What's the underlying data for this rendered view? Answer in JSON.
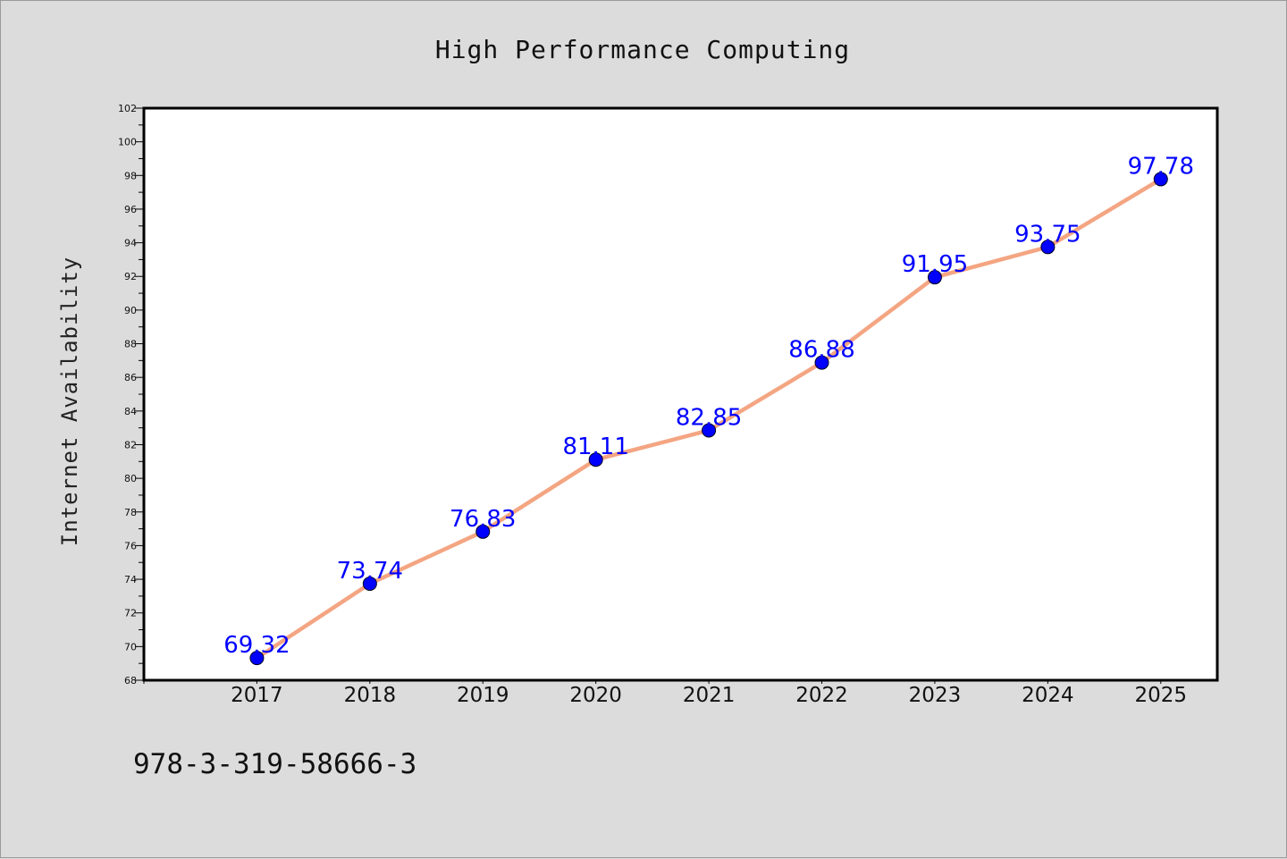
{
  "footer_text": "978-3-319-58666-3",
  "colors": {
    "background": "#dcdcdc",
    "plot_background": "#ffffff",
    "line": "#f4a582",
    "marker": "#0000ff",
    "data_label": "#0000ff"
  },
  "chart_data": {
    "type": "line",
    "title": "High Performance Computing",
    "xlabel": "",
    "ylabel": "Internet Availability",
    "x": [
      "2017",
      "2018",
      "2019",
      "2020",
      "2021",
      "2022",
      "2023",
      "2024",
      "2025"
    ],
    "values": [
      69.32,
      73.74,
      76.83,
      81.11,
      82.85,
      86.88,
      91.95,
      93.75,
      97.78
    ],
    "data_labels": [
      "69.32",
      "73.74",
      "76.83",
      "81.11",
      "82.85",
      "86.88",
      "91.95",
      "93.75",
      "97.78"
    ],
    "ylim": [
      68,
      102
    ],
    "yticks": [
      68,
      70,
      72,
      74,
      76,
      78,
      80,
      82,
      84,
      86,
      88,
      90,
      92,
      94,
      96,
      98,
      100,
      102
    ],
    "xlim": [
      "2016",
      "2025.5"
    ],
    "grid": false,
    "legend": "none",
    "markers": "circle"
  }
}
